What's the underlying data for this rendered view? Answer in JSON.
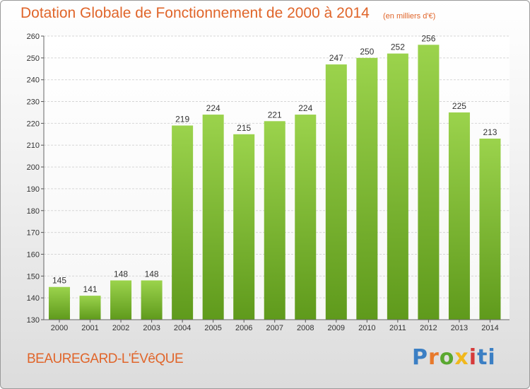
{
  "header": {
    "title": "Dotation Globale de Fonctionnement de 2000 à 2014",
    "unit": "(en milliers d'€)"
  },
  "footer": {
    "commune": "BEAUREGARD-L'ÉVêQUE",
    "logo": [
      "P",
      "r",
      "o",
      "x",
      "i",
      "t",
      "i"
    ]
  },
  "colors": {
    "accent": "#e0652a",
    "bar_top": "#9bd34c",
    "bar_bottom": "#5f9a1c"
  },
  "chart_data": {
    "type": "bar",
    "title": "Dotation Globale de Fonctionnement de 2000 à 2014",
    "subtitle": "(en milliers d'€)",
    "categories": [
      "2000",
      "2001",
      "2002",
      "2003",
      "2004",
      "2005",
      "2006",
      "2007",
      "2008",
      "2009",
      "2010",
      "2011",
      "2012",
      "2013",
      "2014"
    ],
    "values": [
      145,
      141,
      148,
      148,
      219,
      224,
      215,
      221,
      224,
      247,
      250,
      252,
      256,
      225,
      213
    ],
    "ylim": [
      130,
      260
    ],
    "yticks": [
      130,
      140,
      150,
      160,
      170,
      180,
      190,
      200,
      210,
      220,
      230,
      240,
      250,
      260
    ],
    "grid": true,
    "data_labels": true,
    "legend": "none"
  }
}
